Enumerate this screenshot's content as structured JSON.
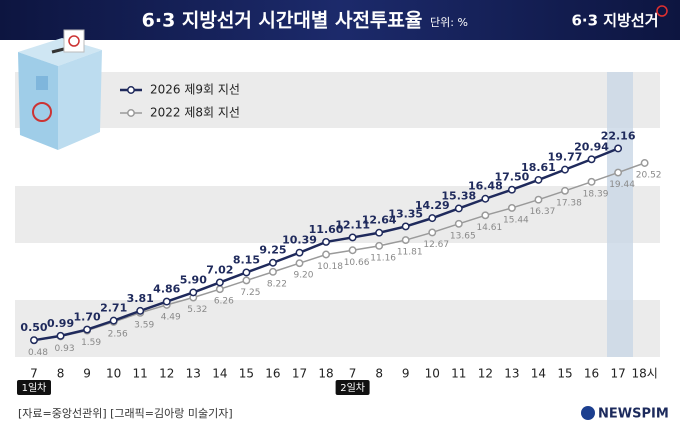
{
  "chart_data": {
    "type": "line",
    "title": "6·3 지방선거 시간대별 사전투표율",
    "unit": "단위: %",
    "logo": "6·3 지방선거",
    "source": "[자료=중앙선관위] [그래픽=김아랑 미술기자]",
    "brand": "NEWSPIM",
    "day_labels": [
      "1일차",
      "2일차"
    ],
    "categories": [
      "7",
      "8",
      "9",
      "10",
      "11",
      "12",
      "13",
      "14",
      "15",
      "16",
      "17",
      "18",
      "7",
      "8",
      "9",
      "10",
      "11",
      "12",
      "13",
      "14",
      "15",
      "16",
      "17",
      "18시"
    ],
    "ylim": [
      -1.4,
      30.8
    ],
    "series": [
      {
        "name": "2026 제9회 지선",
        "color": "#1f2a5c",
        "values": [
          0.5,
          0.99,
          1.7,
          2.71,
          3.81,
          4.86,
          5.9,
          7.02,
          8.15,
          9.25,
          10.39,
          11.6,
          12.11,
          12.64,
          13.35,
          14.29,
          15.38,
          16.48,
          17.5,
          18.61,
          19.77,
          20.94,
          22.16,
          null
        ],
        "value_labels": [
          "0.50",
          "0.99",
          "1.70",
          "2.71",
          "3.81",
          "4.86",
          "5.90",
          "7.02",
          "8.15",
          "9.25",
          "10.39",
          "11.60",
          "12.11",
          "12.64",
          "13.35",
          "14.29",
          "15.38",
          "16.48",
          "17.50",
          "18.61",
          "19.77",
          "20.94",
          "22.16",
          null
        ]
      },
      {
        "name": "2022 제8회 지선",
        "color": "#9a9a9a",
        "values": [
          0.48,
          0.93,
          1.59,
          2.56,
          3.59,
          4.49,
          5.32,
          6.26,
          7.25,
          8.22,
          9.2,
          10.18,
          10.66,
          11.16,
          11.81,
          12.67,
          13.65,
          14.61,
          15.44,
          16.37,
          17.38,
          18.39,
          19.44,
          20.52
        ],
        "value_labels": [
          "0.48",
          "0.93",
          "1.59",
          "2.56",
          "3.59",
          "4.49",
          "5.32",
          "6.26",
          "7.25",
          "8.22",
          "9.20",
          "10.18",
          "10.66",
          "11.16",
          "11.81",
          "12.67",
          "13.65",
          "14.61",
          "15.44",
          "16.37",
          "17.38",
          "18.39",
          "19.44",
          "20.52"
        ]
      }
    ]
  }
}
